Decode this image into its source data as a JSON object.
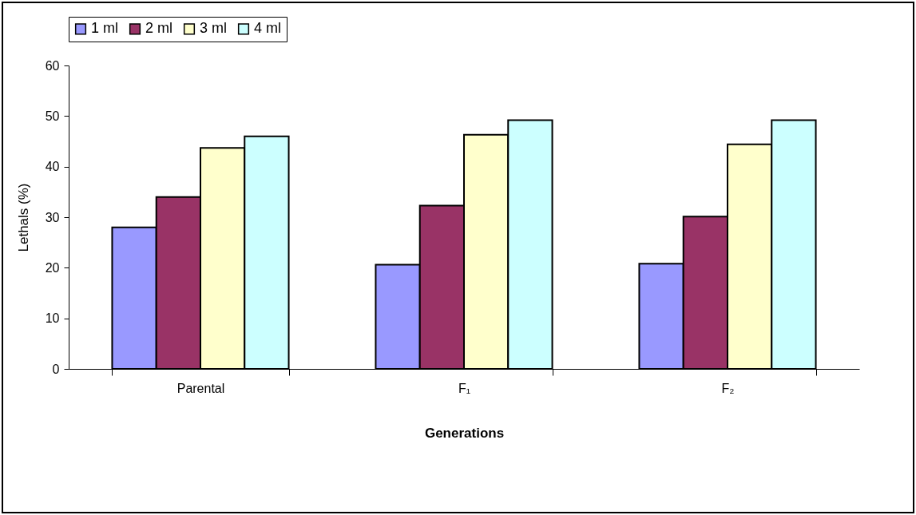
{
  "chart_data": {
    "type": "bar",
    "xlabel": "Generations",
    "ylabel": "Lethals (%)",
    "categories": [
      "Parental",
      "F₁",
      "F₂"
    ],
    "series": [
      {
        "name": "1 ml",
        "color": "#9999ff",
        "values": [
          28,
          20.6,
          20.8
        ]
      },
      {
        "name": "2 ml",
        "color": "#993366",
        "values": [
          34,
          32.3,
          30.1
        ]
      },
      {
        "name": "3 ml",
        "color": "#ffffcc",
        "values": [
          43.7,
          46.3,
          44.4
        ]
      },
      {
        "name": "4 ml",
        "color": "#ccffff",
        "values": [
          46,
          49.2,
          49.2
        ]
      }
    ],
    "ylim": [
      0,
      60
    ],
    "yticks": [
      0,
      10,
      20,
      30,
      40,
      50,
      60
    ],
    "grid": false,
    "legend": "top"
  }
}
